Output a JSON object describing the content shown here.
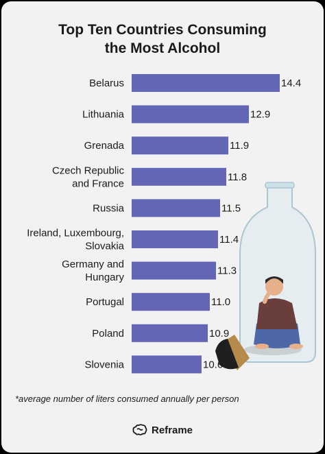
{
  "title_line1": "Top Ten Countries Consuming",
  "title_line2": "the Most Alcohol",
  "footnote": "*average number of liters consumed annually per person",
  "brand": {
    "name": "Reframe",
    "icon": "brain-icon"
  },
  "colors": {
    "bar": "#6266b5",
    "background": "#f2f2f2",
    "text": "#1a1a1a"
  },
  "illustration": {
    "icon": "bottle-with-person-illustration"
  },
  "chart_data": {
    "type": "bar",
    "orientation": "horizontal",
    "title": "Top Ten Countries Consuming the Most Alcohol",
    "categories": [
      [
        "Belarus"
      ],
      [
        "Lithuania"
      ],
      [
        "Grenada"
      ],
      [
        "Czech Republic",
        "and France"
      ],
      [
        "Russia"
      ],
      [
        "Ireland, Luxembourg,",
        "Slovakia"
      ],
      [
        "Germany and",
        "Hungary"
      ],
      [
        "Portugal"
      ],
      [
        "Poland"
      ],
      [
        "Slovenia"
      ]
    ],
    "values": [
      14.4,
      12.9,
      11.9,
      11.8,
      11.5,
      11.4,
      11.3,
      11.0,
      10.9,
      10.6
    ],
    "value_labels": [
      "14.4",
      "12.9",
      "11.9",
      "11.8",
      "11.5",
      "11.4",
      "11.3",
      "11.0",
      "10.9",
      "10.6"
    ],
    "xlim": [
      7.2,
      14.4
    ],
    "grid": false,
    "legend": "none"
  }
}
